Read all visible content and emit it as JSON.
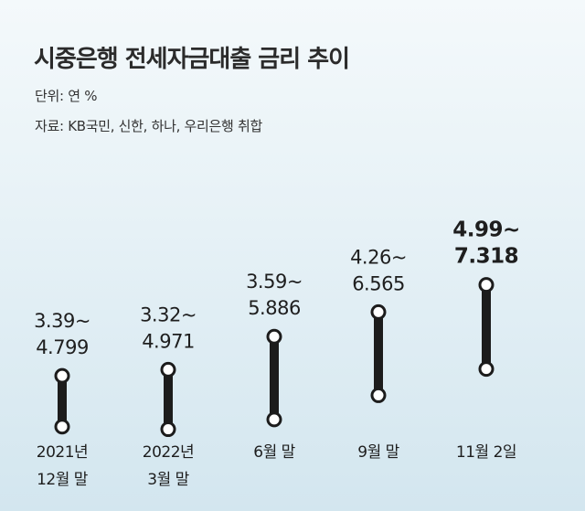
{
  "chart_data": {
    "type": "range",
    "title": "시중은행 전세자금대출 금리 추이",
    "unit_label": "단위: 연 %",
    "source_label": "자료: KB국민, 신한, 하나, 우리은행 취합",
    "categories": [
      [
        "2021년",
        "12월 말"
      ],
      [
        "2022년",
        "3월 말"
      ],
      [
        "6월 말"
      ],
      [
        "9월 말"
      ],
      [
        "11월 2일"
      ]
    ],
    "ranges": [
      {
        "low": 3.39,
        "high": 4.799,
        "low_text": "3.39~",
        "high_text": "4.799"
      },
      {
        "low": 3.32,
        "high": 4.971,
        "low_text": "3.32~",
        "high_text": "4.971"
      },
      {
        "low": 3.59,
        "high": 5.886,
        "low_text": "3.59~",
        "high_text": "5.886"
      },
      {
        "low": 4.26,
        "high": 6.565,
        "low_text": "4.26~",
        "high_text": "6.565"
      },
      {
        "low": 4.99,
        "high": 7.318,
        "low_text": "4.99~",
        "high_text": "7.318"
      }
    ],
    "highlight_last": true,
    "colors": {
      "bar": "#1c1c1c",
      "marker_fill": "#ffffff",
      "text": "#1e1e1e"
    }
  }
}
